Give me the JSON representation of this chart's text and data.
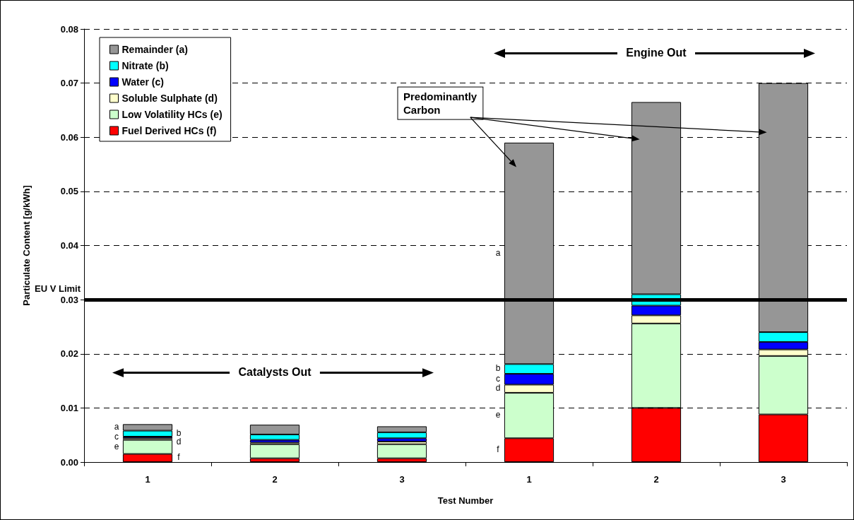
{
  "chart_data": {
    "type": "bar",
    "stacked": true,
    "xlabel": "Test Number",
    "ylabel": "Particulate Content [g/kWh]",
    "categories": [
      "1",
      "2",
      "3",
      "1",
      "2",
      "3"
    ],
    "series": [
      {
        "name": "Fuel Derived HCs (f)",
        "color": "#ff0000",
        "values": [
          0.0015,
          0.0007,
          0.0007,
          0.0044,
          0.01,
          0.0088
        ]
      },
      {
        "name": "Low Volatility HCs (e)",
        "color": "#ccffcc",
        "values": [
          0.0026,
          0.0026,
          0.0026,
          0.0084,
          0.0156,
          0.0108
        ]
      },
      {
        "name": "Soluble Sulphate (d)",
        "color": "#ffffcc",
        "values": [
          0.0003,
          0.0003,
          0.0005,
          0.0015,
          0.0015,
          0.0012
        ]
      },
      {
        "name": "Water (c)",
        "color": "#0000ff",
        "values": [
          0.0003,
          0.0005,
          0.0006,
          0.002,
          0.0018,
          0.0014
        ]
      },
      {
        "name": "Nitrate (b)",
        "color": "#00ffff",
        "values": [
          0.0011,
          0.001,
          0.0011,
          0.0018,
          0.0021,
          0.0018
        ]
      },
      {
        "name": "Remainder (a)",
        "color": "#969696",
        "values": [
          0.0012,
          0.0018,
          0.0011,
          0.0409,
          0.0355,
          0.046
        ]
      }
    ],
    "ylim": [
      0,
      0.08
    ],
    "yticks": [
      {
        "value": 0,
        "label": "0.00"
      },
      {
        "value": 0.01,
        "label": "0.01"
      },
      {
        "value": 0.02,
        "label": "0.02"
      },
      {
        "value": 0.03,
        "label": "0.03"
      },
      {
        "value": 0.04,
        "label": "0.04"
      },
      {
        "value": 0.05,
        "label": "0.05"
      },
      {
        "value": 0.06,
        "label": "0.06"
      },
      {
        "value": 0.07,
        "label": "0.07"
      },
      {
        "value": 0.08,
        "label": "0.08"
      }
    ],
    "grid": "y",
    "legend": "top left",
    "ref_lines": [
      {
        "axis": "y",
        "value": 0.03,
        "label": "EU V Limit",
        "color": "#000000",
        "line_style": "solid"
      }
    ],
    "annotations": [
      "Catalysts Out",
      "Engine Out",
      "Predominantly Carbon",
      "a",
      "b",
      "c",
      "d",
      "e",
      "f",
      "a",
      "b",
      "c",
      "d",
      "e",
      "f"
    ]
  }
}
